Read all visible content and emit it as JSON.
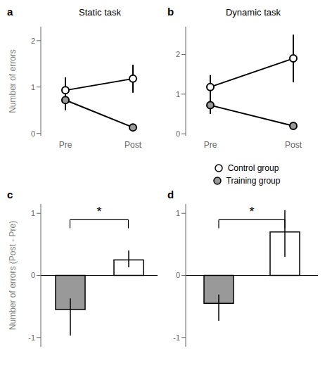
{
  "chart_data": [
    {
      "type": "line",
      "title": "Static task",
      "categories": [
        "Pre",
        "Post"
      ],
      "series": [
        {
          "name": "Control group",
          "color": "#ffffff",
          "values": [
            0.93,
            1.18
          ],
          "errors": [
            0.28,
            0.3
          ]
        },
        {
          "name": "Training group",
          "color": "#999999",
          "values": [
            0.72,
            0.13
          ],
          "errors": [
            0.22,
            0.06
          ]
        }
      ],
      "y_label": "Number of errors",
      "ylim": [
        -0.05,
        2.3
      ],
      "yticks": [
        0,
        1,
        2
      ],
      "annotations": [
        "a"
      ]
    },
    {
      "type": "line",
      "title": "Dynamic task",
      "categories": [
        "Pre",
        "Post"
      ],
      "series": [
        {
          "name": "Control group",
          "color": "#ffffff",
          "values": [
            1.18,
            1.9
          ],
          "errors": [
            0.3,
            0.6
          ]
        },
        {
          "name": "Training group",
          "color": "#999999",
          "values": [
            0.72,
            0.2
          ],
          "errors": [
            0.22,
            0.05
          ]
        }
      ],
      "ylim": [
        -0.05,
        2.7
      ],
      "yticks": [
        0,
        1,
        2
      ],
      "legend": "bottom",
      "annotations": [
        "b"
      ]
    },
    {
      "type": "bar",
      "categories": [
        null,
        null
      ],
      "values": [
        -0.55,
        0.25
      ],
      "errors": [
        [
          0.42,
          0.18
        ],
        [
          0.12,
          0.15
        ]
      ],
      "colors": [
        "#999999",
        "#ffffff"
      ],
      "y_label": "Number of errors (Post - Pre)",
      "ylim": [
        -1.15,
        1.15
      ],
      "yticks": [
        -1,
        0,
        1
      ],
      "tick_labels": "y",
      "annotations": [
        "c",
        "*"
      ]
    },
    {
      "type": "bar",
      "categories": [
        null,
        null
      ],
      "values": [
        -0.45,
        0.7
      ],
      "errors": [
        [
          0.28,
          0.14
        ],
        [
          0.4,
          0.35
        ]
      ],
      "colors": [
        "#999999",
        "#ffffff"
      ],
      "ylim": [
        -1.15,
        1.15
      ],
      "yticks": [
        -1,
        0,
        1
      ],
      "tick_labels": "y",
      "annotations": [
        "d",
        "*"
      ]
    }
  ]
}
